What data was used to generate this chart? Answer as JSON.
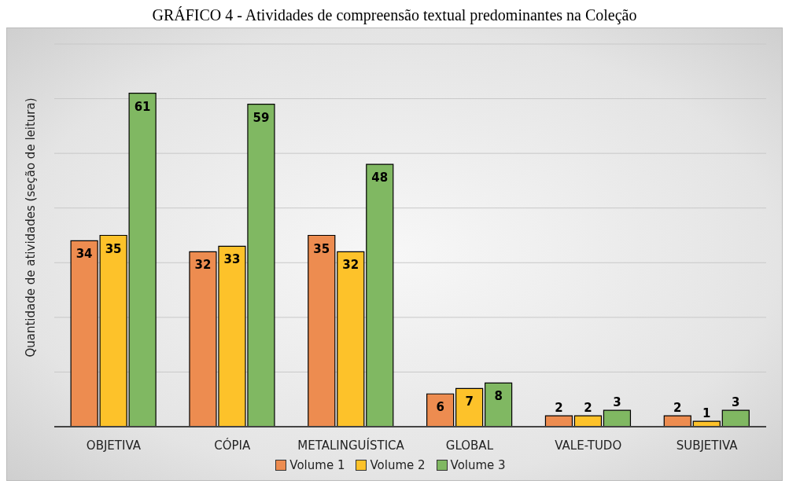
{
  "chart_data": {
    "type": "bar",
    "title": "GRÁFICO 4 - Atividades de compreensão textual predominantes na Coleção",
    "ylabel": "Quantidade de atividades (seção de leitura)",
    "categories": [
      "OBJETIVA",
      "CÓPIA",
      "METALINGUÍSTICA",
      "GLOBAL",
      "VALE-TUDO",
      "SUBJETIVA"
    ],
    "series": [
      {
        "name": "Volume 1",
        "color": "#ed8c50",
        "values": [
          34,
          32,
          35,
          6,
          2,
          2
        ]
      },
      {
        "name": "Volume 2",
        "color": "#fdc22a",
        "values": [
          35,
          33,
          32,
          7,
          2,
          1
        ]
      },
      {
        "name": "Volume 3",
        "color": "#80b862",
        "values": [
          61,
          59,
          48,
          8,
          3,
          3
        ]
      }
    ],
    "ylim": [
      0,
      70
    ],
    "yticks": [
      {
        "value": 0,
        "label": null
      },
      {
        "value": 10,
        "label": null
      },
      {
        "value": 20,
        "label": null
      },
      {
        "value": 30,
        "label": null
      },
      {
        "value": 40,
        "label": null
      },
      {
        "value": 50,
        "label": null
      },
      {
        "value": 60,
        "label": null
      },
      {
        "value": 70,
        "label": null
      }
    ],
    "grid": "y",
    "legend": "bottom",
    "data_labels": true
  }
}
